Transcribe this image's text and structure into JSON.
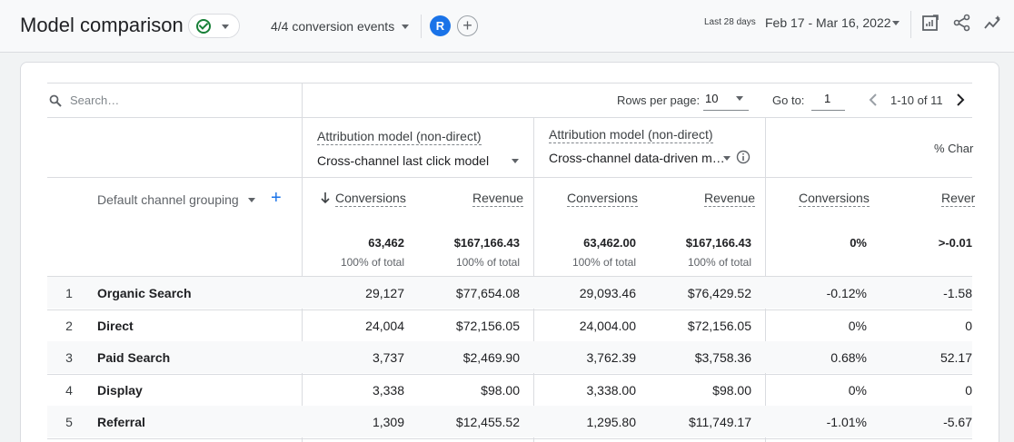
{
  "header": {
    "title": "Model comparison",
    "events": "4/4 conversion events",
    "avatar": "R",
    "date_label": "Last 28 days",
    "date_range": "Feb 17 - Mar 16, 2022"
  },
  "toolbar": {
    "search_placeholder": "Search…",
    "rows_per_page_label": "Rows per page:",
    "rows_per_page": "10",
    "goto_label": "Go to:",
    "goto_value": "1",
    "range": "1-10 of 11"
  },
  "models": [
    {
      "label": "Attribution model (non-direct)",
      "value": "Cross-channel last click model"
    },
    {
      "label": "Attribution model (non-direct)",
      "value": "Cross-channel data-driven m…"
    }
  ],
  "pct_change_header": "% Char",
  "dimension": "Default channel grouping",
  "columns": {
    "conv1": "Conversions",
    "rev1": "Revenue",
    "conv2": "Conversions",
    "rev2": "Revenue",
    "conv3": "Conversions",
    "rev3": "Rever"
  },
  "totals": {
    "conv1": "63,462",
    "rev1": "$167,166.43",
    "conv2": "63,462.00",
    "rev2": "$167,166.43",
    "conv3": "0%",
    "rev3": ">-0.01",
    "pct1": "100% of total",
    "pct2": "100% of total",
    "pct3": "100% of total",
    "pct4": "100% of total"
  },
  "rows": [
    {
      "num": "1",
      "channel": "Organic Search",
      "conv1": "29,127",
      "rev1": "$77,654.08",
      "conv2": "29,093.46",
      "rev2": "$76,429.52",
      "conv3": "-0.12%",
      "rev3": "-1.58"
    },
    {
      "num": "2",
      "channel": "Direct",
      "conv1": "24,004",
      "rev1": "$72,156.05",
      "conv2": "24,004.00",
      "rev2": "$72,156.05",
      "conv3": "0%",
      "rev3": "0"
    },
    {
      "num": "3",
      "channel": "Paid Search",
      "conv1": "3,737",
      "rev1": "$2,469.90",
      "conv2": "3,762.39",
      "rev2": "$3,758.36",
      "conv3": "0.68%",
      "rev3": "52.17"
    },
    {
      "num": "4",
      "channel": "Display",
      "conv1": "3,338",
      "rev1": "$98.00",
      "conv2": "3,338.00",
      "rev2": "$98.00",
      "conv3": "0%",
      "rev3": "0"
    },
    {
      "num": "5",
      "channel": "Referral",
      "conv1": "1,309",
      "rev1": "$12,455.52",
      "conv2": "1,295.80",
      "rev2": "$11,749.17",
      "conv3": "-1.01%",
      "rev3": "-5.67"
    }
  ],
  "colors": {
    "accent": "#1a73e8",
    "success": "#188038",
    "text": "#202124"
  }
}
